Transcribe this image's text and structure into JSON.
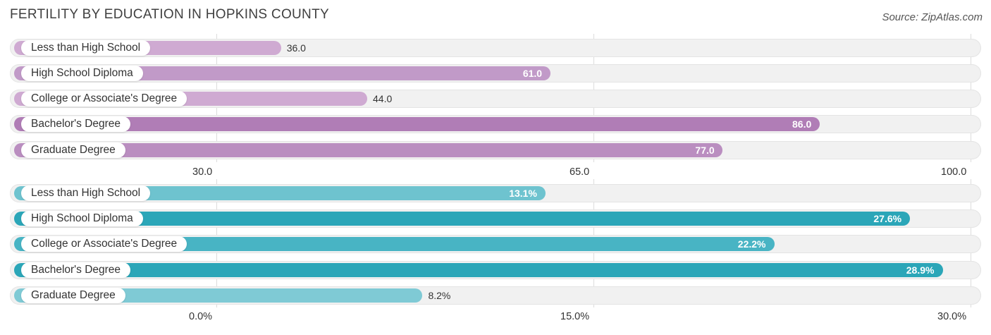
{
  "title": "FERTILITY BY EDUCATION IN HOPKINS COUNTY",
  "source": "Source: ZipAtlas.com",
  "chart_data": [
    {
      "type": "bar",
      "orientation": "horizontal",
      "categories": [
        "Less than High School",
        "High School Diploma",
        "College or Associate's Degree",
        "Bachelor's Degree",
        "Graduate Degree"
      ],
      "values": [
        36.0,
        61.0,
        44.0,
        86.0,
        77.0
      ],
      "value_labels": [
        "36.0",
        "61.0",
        "44.0",
        "86.0",
        "77.0"
      ],
      "xlim": [
        30.0,
        100.0
      ],
      "ticks": [
        30.0,
        65.0,
        100.0
      ],
      "tick_labels": [
        "30.0",
        "65.0",
        "100.0"
      ],
      "colors": [
        "#cfaad2",
        "#c19ac8",
        "#cfaad2",
        "#b07db6",
        "#ba8ec0"
      ],
      "grid": true
    },
    {
      "type": "bar",
      "orientation": "horizontal",
      "categories": [
        "Less than High School",
        "High School Diploma",
        "College or Associate's Degree",
        "Bachelor's Degree",
        "Graduate Degree"
      ],
      "values": [
        13.1,
        27.6,
        22.2,
        28.9,
        8.2
      ],
      "value_labels": [
        "13.1%",
        "27.6%",
        "22.2%",
        "28.9%",
        "8.2%"
      ],
      "xlim": [
        0.0,
        30.0
      ],
      "ticks": [
        0.0,
        15.0,
        30.0
      ],
      "tick_labels": [
        "0.0%",
        "15.0%",
        "30.0%"
      ],
      "colors": [
        "#6ec3cf",
        "#2ba6b8",
        "#48b4c4",
        "#2ba6b8",
        "#7fcad5"
      ],
      "grid": true
    }
  ]
}
